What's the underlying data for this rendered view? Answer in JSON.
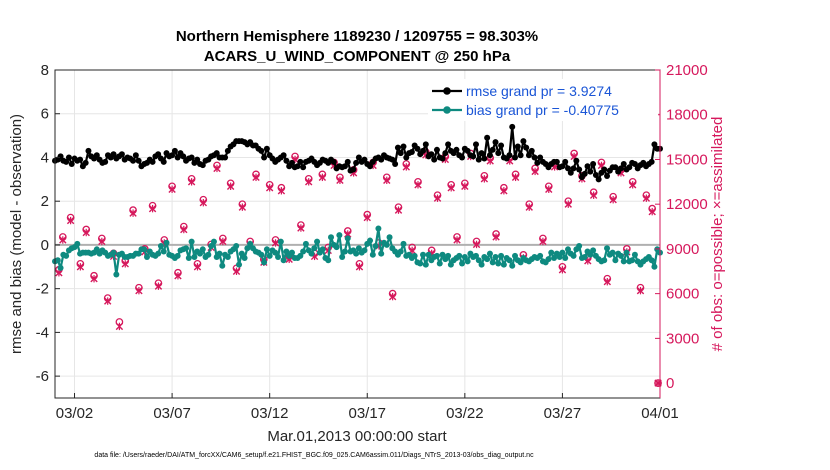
{
  "chart_data": {
    "type": "line",
    "title": "Northern Hemisphere 1189230 / 1209755 = 98.303%",
    "subtitle": "ACARS_U_WIND_COMPONENT @ 250 hPa",
    "xlabel": "Mar.01,2013 00:00:00 start",
    "ylabel_left": "rmse and bias (model - observation)",
    "ylabel_right": "# of obs: o=possible; ×=assimilated",
    "footer": "data file: /Users/raeder/DAI/ATM_forcXX/CAM6_setup/f.e21.FHIST_BGC.f09_025.CAM6assim.011/Diags_NTrS_2013-03/obs_diag_output.nc",
    "xlim": [
      1,
      32
    ],
    "ylim_left": [
      -7,
      8
    ],
    "ylim_right": [
      -1000,
      21000
    ],
    "x_ticks": [
      2,
      7,
      12,
      17,
      22,
      27,
      32
    ],
    "x_tick_labels": [
      "03/02",
      "03/07",
      "03/12",
      "03/17",
      "03/22",
      "03/27",
      "04/01"
    ],
    "y_ticks_left": [
      8,
      6,
      4,
      2,
      0,
      -2,
      -4,
      -6
    ],
    "y_tick_labels_left": [
      "8",
      "6",
      "4",
      "2",
      "0",
      "-2",
      "-4",
      "-6"
    ],
    "y_ticks_right": [
      21000,
      18000,
      15000,
      12000,
      9000,
      6000,
      3000,
      0
    ],
    "y_tick_labels_right": [
      "21000",
      "18000",
      "15000",
      "12000",
      "9000",
      "6000",
      "3000",
      "0"
    ],
    "legend_position": "top-right",
    "series": [
      {
        "name": "rmse grand pr = 3.9274",
        "axis": "left",
        "color": "#000000",
        "values": [
          3.85,
          3.9,
          4.05,
          3.85,
          3.8,
          4.0,
          3.7,
          3.95,
          3.85,
          3.9,
          3.6,
          3.75,
          4.3,
          4.05,
          3.95,
          4.1,
          3.9,
          3.75,
          3.8,
          4.1,
          4.0,
          4.15,
          3.95,
          4.05,
          4.15,
          3.9,
          4.0,
          3.95,
          3.85,
          4.1,
          3.85,
          3.6,
          3.7,
          3.75,
          3.9,
          3.8,
          4.05,
          4.15,
          3.95,
          3.8,
          4.2,
          4.05,
          4.1,
          4.3,
          4.0,
          4.2,
          4.05,
          3.85,
          3.95,
          4.0,
          3.75,
          3.9,
          3.7,
          3.65,
          3.85,
          3.9,
          4.05,
          4.1,
          4.2,
          4.0,
          4.0,
          4.0,
          4.3,
          4.5,
          4.6,
          4.75,
          4.75,
          4.75,
          4.7,
          4.6,
          4.7,
          4.55,
          4.55,
          4.4,
          4.3,
          4.0,
          4.4,
          4.1,
          3.95,
          3.8,
          3.9,
          4.0,
          4.1,
          3.85,
          3.6,
          3.75,
          3.55,
          3.6,
          3.8,
          3.55,
          3.8,
          3.85,
          3.95,
          3.8,
          3.65,
          3.75,
          3.9,
          3.85,
          3.75,
          3.9,
          3.8,
          3.5,
          3.6,
          3.55,
          3.6,
          3.8,
          3.4,
          3.45,
          3.75,
          4.0,
          3.8,
          3.9,
          3.7,
          3.6,
          3.8,
          3.95,
          4.0,
          3.9,
          4.1,
          4.0,
          3.95,
          3.9,
          3.7,
          4.45,
          4.2,
          4.5,
          4.0,
          4.2,
          4.25,
          4.55,
          4.4,
          4.15,
          4.3,
          4.6,
          4.05,
          4.15,
          3.9,
          4.35,
          4.0,
          3.95,
          4.2,
          4.6,
          4.3,
          4.2,
          4.35,
          4.1,
          4.0,
          4.4,
          4.3,
          4.1,
          4.05,
          4.6,
          3.9,
          4.2,
          3.95,
          4.9,
          4.1,
          4.35,
          4.7,
          4.2,
          4.55,
          4.0,
          3.95,
          4.1,
          5.4,
          4.0,
          4.5,
          4.1,
          4.75,
          4.45,
          4.1,
          4.3,
          4.0,
          3.75,
          4.0,
          3.8,
          3.7,
          3.55,
          3.7,
          3.8,
          3.8,
          3.55,
          3.6,
          3.8,
          3.5,
          3.3,
          3.5,
          3.85,
          3.45,
          3.1,
          3.25,
          3.6,
          3.35,
          3.7,
          3.2,
          3.0,
          3.3,
          3.45,
          3.15,
          3.4,
          3.55,
          3.55,
          3.35,
          3.5,
          3.7,
          3.45,
          3.55,
          3.75,
          3.7,
          3.5,
          3.65,
          3.75,
          3.6,
          3.7,
          3.8,
          4.6,
          4.4,
          4.4
        ]
      },
      {
        "name": "bias grand pr = -0.40775",
        "axis": "left",
        "color": "#0e8a80",
        "values": [
          -0.75,
          -0.7,
          -1.05,
          -0.45,
          -0.5,
          -0.25,
          -0.15,
          -0.1,
          0.05,
          -0.4,
          -0.35,
          -0.35,
          -0.35,
          -0.4,
          -0.35,
          -0.2,
          -0.4,
          -0.25,
          -0.35,
          -0.5,
          -0.45,
          -0.35,
          -1.35,
          -0.45,
          -0.4,
          -0.55,
          -0.55,
          -0.5,
          -0.5,
          -0.4,
          -0.4,
          -0.2,
          -0.2,
          -0.55,
          -0.3,
          -0.45,
          -0.5,
          -0.4,
          -0.05,
          -0.3,
          0.1,
          -0.45,
          -0.5,
          -0.6,
          -0.5,
          -0.25,
          -0.2,
          -0.15,
          -0.6,
          0.15,
          -0.55,
          -0.3,
          -0.4,
          -0.2,
          -0.55,
          -0.45,
          -0.05,
          0.15,
          -0.55,
          -0.4,
          -0.95,
          -0.45,
          -0.55,
          -0.3,
          -0.2,
          -0.05,
          -0.9,
          -0.4,
          -0.6,
          -0.15,
          0.05,
          -0.15,
          -0.3,
          -0.35,
          -0.45,
          -0.8,
          -0.2,
          -0.5,
          -0.25,
          -0.35,
          -0.55,
          0.15,
          -0.7,
          -0.3,
          -0.5,
          -0.35,
          -0.6,
          -0.6,
          -0.5,
          -0.3,
          0.05,
          -0.25,
          -0.4,
          -0.15,
          0.15,
          -0.35,
          -0.2,
          -0.6,
          -0.7,
          0.35,
          0.0,
          -0.1,
          0.45,
          -0.55,
          -0.3,
          0.3,
          -0.3,
          -0.25,
          -0.4,
          -0.15,
          -0.35,
          -0.25,
          0.05,
          0.2,
          -0.45,
          -0.05,
          0.75,
          -0.4,
          0.1,
          0.0,
          0.35,
          -0.15,
          -0.3,
          -0.45,
          -0.3,
          0.05,
          -0.5,
          -0.45,
          -0.6,
          -0.5,
          -0.8,
          -0.85,
          -0.45,
          -0.9,
          -0.45,
          -0.7,
          -0.55,
          -0.5,
          -0.85,
          -0.45,
          -0.65,
          -0.5,
          -0.9,
          -0.7,
          -0.6,
          -0.5,
          -0.85,
          -0.55,
          -0.75,
          -0.4,
          -0.55,
          -0.5,
          -0.7,
          -0.9,
          -0.55,
          -0.65,
          -0.4,
          -0.8,
          -0.55,
          -0.85,
          -0.5,
          -0.9,
          -0.6,
          -0.7,
          -0.95,
          -0.5,
          -0.7,
          -0.8,
          -0.6,
          -0.7,
          -0.75,
          -0.65,
          -0.55,
          -0.6,
          -0.5,
          -0.75,
          -0.8,
          -0.65,
          -0.35,
          -0.6,
          -0.4,
          -0.55,
          -0.35,
          -0.6,
          -0.2,
          -0.4,
          -0.5,
          -0.2,
          -0.05,
          -0.6,
          -0.55,
          -0.3,
          -0.45,
          -0.25,
          -0.5,
          -0.65,
          -0.75,
          -0.7,
          -0.15,
          -0.45,
          -0.35,
          -0.7,
          -0.4,
          -0.5,
          -0.75,
          -0.35,
          -0.75,
          -0.7,
          -0.45,
          -0.75,
          -0.9,
          -0.75,
          -0.65,
          -0.55,
          -0.7,
          -1.0,
          -0.2,
          -0.35
        ]
      },
      {
        "name": "obs possible",
        "axis": "right",
        "color": "#d6185c",
        "x": [
          1.2,
          1.4,
          1.8,
          2.3,
          2.6,
          3.0,
          3.4,
          3.7,
          4.0,
          4.3,
          4.6,
          5.0,
          5.3,
          5.6,
          6.0,
          6.3,
          6.6,
          7.0,
          7.3,
          7.6,
          8.0,
          8.3,
          8.6,
          9.0,
          9.3,
          9.6,
          10.0,
          10.3,
          10.6,
          11.0,
          11.3,
          11.7,
          12.0,
          12.3,
          12.6,
          13.0,
          13.3,
          13.6,
          14.0,
          14.3,
          14.7,
          15.0,
          15.3,
          15.6,
          16.0,
          16.3,
          16.6,
          17.0,
          17.3,
          17.6,
          18.0,
          18.3,
          18.6,
          19.0,
          19.3,
          19.6,
          20.0,
          20.3,
          20.6,
          21.0,
          21.3,
          21.6,
          22.0,
          22.3,
          22.6,
          23.0,
          23.3,
          23.6,
          24.0,
          24.3,
          24.6,
          25.0,
          25.3,
          25.6,
          26.0,
          26.3,
          26.6,
          27.0,
          27.3,
          27.6,
          28.0,
          28.3,
          28.6,
          29.0,
          29.3,
          29.6,
          30.0,
          30.3,
          30.6,
          31.0,
          31.3,
          31.6,
          31.9
        ],
        "values": [
          7600,
          9800,
          11100,
          8000,
          10300,
          7200,
          9700,
          5700,
          8700,
          4100,
          8200,
          11600,
          6400,
          9000,
          11900,
          6700,
          9600,
          13200,
          7400,
          10500,
          13700,
          8000,
          12300,
          9300,
          14600,
          9700,
          13400,
          7700,
          12000,
          9500,
          14000,
          8300,
          13300,
          9600,
          13100,
          8500,
          15200,
          10600,
          13700,
          8700,
          14000,
          9100,
          14800,
          13800,
          10200,
          14300,
          8000,
          11300,
          14800,
          9400,
          13800,
          6000,
          11800,
          14700,
          9100,
          13500,
          15500,
          8900,
          12600,
          15200,
          13300,
          9800,
          13400,
          15400,
          9500,
          13900,
          15100,
          10000,
          13100,
          15100,
          14000,
          8600,
          12000,
          14400,
          9700,
          13200,
          14700,
          7800,
          12200,
          15400,
          13900,
          8400,
          12800,
          14800,
          7000,
          12500,
          14300,
          9000,
          13500,
          6400,
          12600,
          11700,
          0
        ]
      },
      {
        "name": "obs assimilated",
        "axis": "right",
        "color": "#d6185c",
        "x": [
          1.2,
          1.4,
          1.8,
          2.3,
          2.6,
          3.0,
          3.4,
          3.7,
          4.0,
          4.3,
          4.6,
          5.0,
          5.3,
          5.6,
          6.0,
          6.3,
          6.6,
          7.0,
          7.3,
          7.6,
          8.0,
          8.3,
          8.6,
          9.0,
          9.3,
          9.6,
          10.0,
          10.3,
          10.6,
          11.0,
          11.3,
          11.7,
          12.0,
          12.3,
          12.6,
          13.0,
          13.3,
          13.6,
          14.0,
          14.3,
          14.7,
          15.0,
          15.3,
          15.6,
          16.0,
          16.3,
          16.6,
          17.0,
          17.3,
          17.6,
          18.0,
          18.3,
          18.6,
          19.0,
          19.3,
          19.6,
          20.0,
          20.3,
          20.6,
          21.0,
          21.3,
          21.6,
          22.0,
          22.3,
          22.6,
          23.0,
          23.3,
          23.6,
          24.0,
          24.3,
          24.6,
          25.0,
          25.3,
          25.6,
          26.0,
          26.3,
          26.6,
          27.0,
          27.3,
          27.6,
          28.0,
          28.3,
          28.6,
          29.0,
          29.3,
          29.6,
          30.0,
          30.3,
          30.6,
          31.0,
          31.3,
          31.6,
          31.9
        ],
        "values": [
          7400,
          9600,
          10900,
          7800,
          10100,
          7000,
          9500,
          5500,
          8500,
          3800,
          8000,
          11400,
          6200,
          8800,
          11700,
          6500,
          9400,
          13000,
          7200,
          10300,
          13500,
          7800,
          12100,
          9100,
          14400,
          9500,
          13200,
          7500,
          11800,
          9300,
          13800,
          8100,
          13100,
          9400,
          12900,
          8300,
          15000,
          10400,
          13500,
          8500,
          13800,
          8900,
          14600,
          13600,
          10000,
          14100,
          7800,
          11100,
          14600,
          9200,
          13600,
          5800,
          11600,
          14500,
          8900,
          13300,
          15300,
          8700,
          12400,
          15000,
          13100,
          9600,
          13200,
          15200,
          9300,
          13700,
          14900,
          9800,
          12900,
          14900,
          13800,
          8400,
          11800,
          14200,
          9500,
          13000,
          14500,
          7600,
          12000,
          15200,
          13700,
          8200,
          12600,
          14600,
          6800,
          12300,
          14100,
          8800,
          13300,
          6200,
          12400,
          11500,
          0
        ]
      }
    ]
  }
}
